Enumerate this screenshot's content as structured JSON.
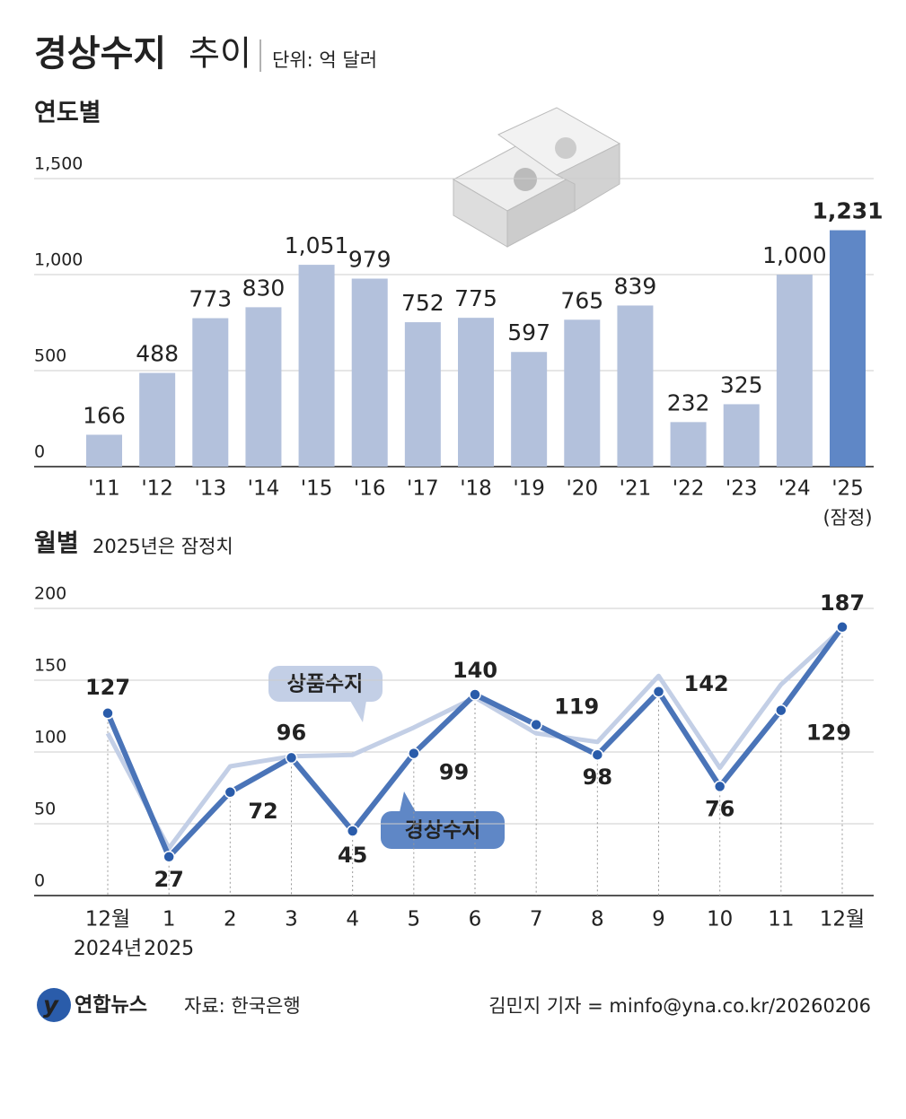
{
  "header": {
    "title": "경상수지",
    "title_suffix": "추이",
    "unit": "단위: 억 달러"
  },
  "chart_data": [
    {
      "type": "bar",
      "title": "연도별",
      "categories": [
        "'11",
        "'12",
        "'13",
        "'14",
        "'15",
        "'16",
        "'17",
        "'18",
        "'19",
        "'20",
        "'21",
        "'22",
        "'23",
        "'24",
        "'25"
      ],
      "values": [
        166,
        488,
        773,
        830,
        1051,
        979,
        752,
        775,
        597,
        765,
        839,
        232,
        325,
        1000,
        1231
      ],
      "value_labels": [
        "166",
        "488",
        "773",
        "830",
        "1,051",
        "979",
        "752",
        "775",
        "597",
        "765",
        "839",
        "232",
        "325",
        "1,000",
        "1,231"
      ],
      "colors": [
        "#b3c1dc",
        "#b3c1dc",
        "#b3c1dc",
        "#b3c1dc",
        "#b3c1dc",
        "#b3c1dc",
        "#b3c1dc",
        "#b3c1dc",
        "#b3c1dc",
        "#b3c1dc",
        "#b3c1dc",
        "#b3c1dc",
        "#b3c1dc",
        "#b3c1dc",
        "#5f87c6"
      ],
      "annotation": "(잠정)",
      "ylim": [
        0,
        1500
      ],
      "yticks": [
        0,
        500,
        {
          "value": 1000,
          "label": "1,000"
        },
        {
          "value": 1500,
          "label": "1,500"
        }
      ],
      "grid": true
    },
    {
      "type": "line",
      "title": "월별",
      "subtitle": "2025년은 잠정치",
      "categories": [
        "12월",
        "1",
        "2",
        "3",
        "4",
        "5",
        "6",
        "7",
        "8",
        "9",
        "10",
        "11",
        "12월"
      ],
      "category_sublabels": [
        "2024년",
        "2025",
        null,
        null,
        null,
        null,
        null,
        null,
        null,
        null,
        null,
        null,
        null
      ],
      "series": [
        {
          "name": "상품수지",
          "color": "#c3cfe6",
          "values": [
            113,
            33,
            90,
            97,
            98,
            117,
            138,
            113,
            107,
            153,
            89,
            147,
            186
          ]
        },
        {
          "name": "경상수지",
          "color": "#4a74b8",
          "values": [
            127,
            27,
            72,
            96,
            45,
            99,
            140,
            119,
            98,
            142,
            76,
            129,
            187
          ]
        }
      ],
      "ylim": [
        0,
        200
      ],
      "yticks": [
        0,
        50,
        100,
        150,
        200
      ],
      "grid": true
    }
  ],
  "footer": {
    "logo": "연합뉴스",
    "source": "자료: 한국은행",
    "credit": "김민지 기자 = minfo@yna.co.kr/20260206"
  }
}
